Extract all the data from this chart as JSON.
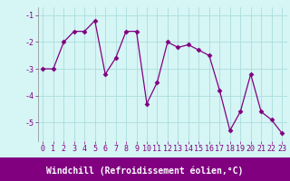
{
  "x": [
    0,
    1,
    2,
    3,
    4,
    5,
    6,
    7,
    8,
    9,
    10,
    11,
    12,
    13,
    14,
    15,
    16,
    17,
    18,
    19,
    20,
    21,
    22,
    23
  ],
  "y": [
    -3.0,
    -3.0,
    -2.0,
    -1.6,
    -1.6,
    -1.2,
    -3.2,
    -2.6,
    -1.6,
    -1.6,
    -4.3,
    -3.5,
    -2.0,
    -2.2,
    -2.1,
    -2.3,
    -2.5,
    -3.8,
    -5.3,
    -4.6,
    -3.2,
    -4.6,
    -4.9,
    -5.4
  ],
  "line_color": "#800080",
  "marker": "D",
  "marker_size": 2.5,
  "bg_color": "#d6f5f5",
  "grid_color": "#aadddd",
  "xlabel": "Windchill (Refroidissement éolien,°C)",
  "xlabel_fontsize": 7,
  "tick_fontsize": 6,
  "ylim": [
    -5.7,
    -0.7
  ],
  "yticks": [
    -5,
    -4,
    -3,
    -2,
    -1
  ],
  "xlim": [
    -0.5,
    23.5
  ],
  "xticks": [
    0,
    1,
    2,
    3,
    4,
    5,
    6,
    7,
    8,
    9,
    10,
    11,
    12,
    13,
    14,
    15,
    16,
    17,
    18,
    19,
    20,
    21,
    22,
    23
  ],
  "bottom_bar_color": "#800080",
  "bottom_bar_height": 0.13
}
